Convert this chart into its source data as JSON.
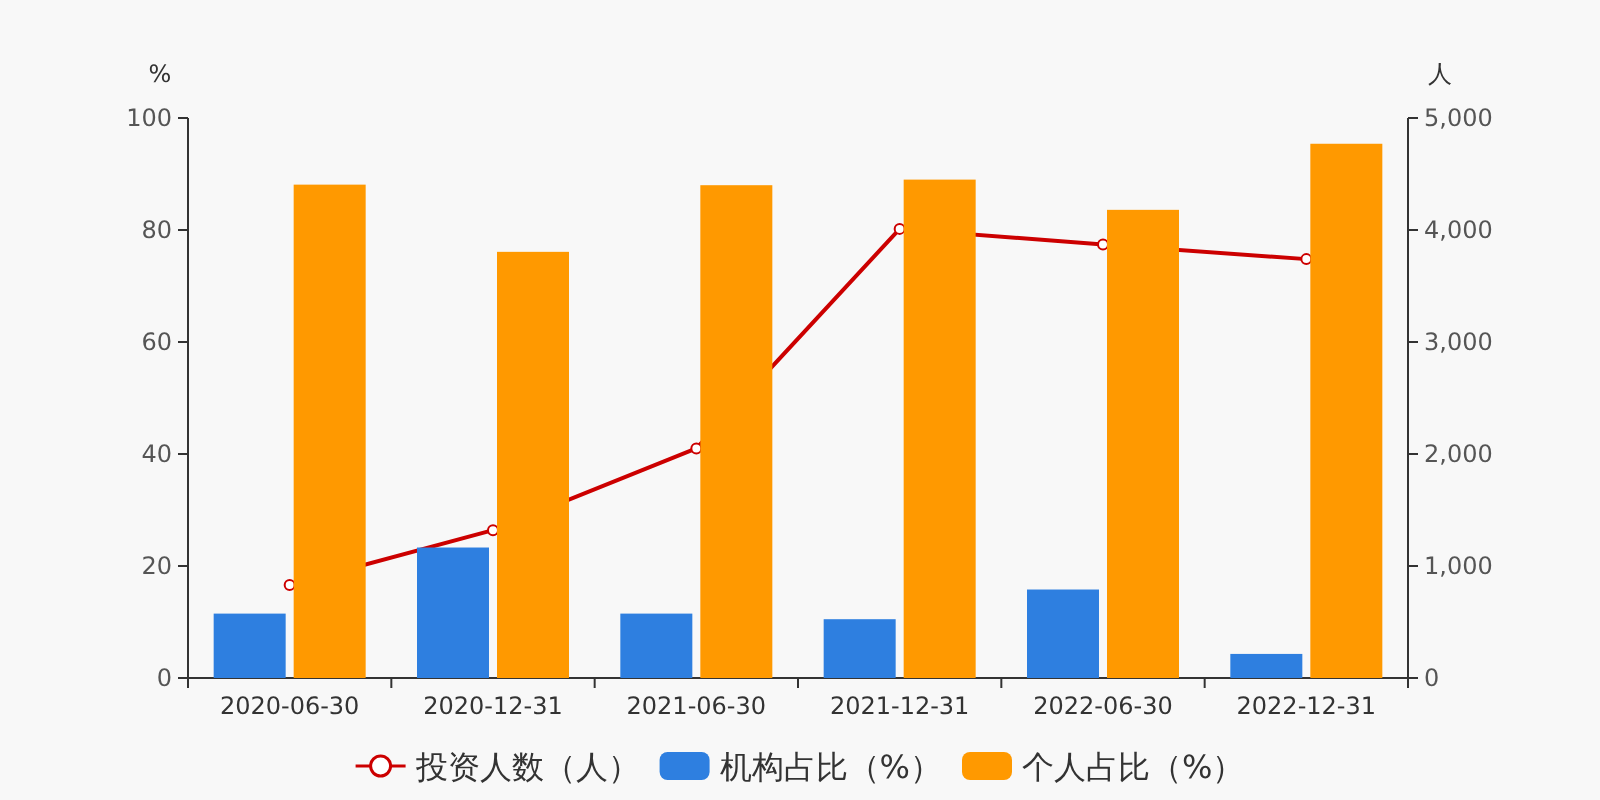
{
  "chart_data": {
    "type": "bar",
    "categories": [
      "2020-06-30",
      "2020-12-31",
      "2021-06-30",
      "2021-12-31",
      "2022-06-30",
      "2022-12-31"
    ],
    "series": [
      {
        "name": "投资人数（人）",
        "type": "line",
        "axis": "y2",
        "color": "#cc0000",
        "marker": "circle",
        "values": [
          830,
          1320,
          2050,
          4010,
          3870,
          3740
        ]
      },
      {
        "name": "机构占比（%）",
        "color": "#2e7fe0",
        "values": [
          11.5,
          23.3,
          11.5,
          10.5,
          15.8,
          4.3
        ]
      },
      {
        "name": "个人占比（%）",
        "color": "#ff9900",
        "values": [
          88.1,
          76.1,
          88.0,
          89.0,
          83.6,
          95.4
        ]
      }
    ],
    "ylabel": "%",
    "y2label": "人",
    "ylim": [
      0,
      100
    ],
    "yticks": [
      0,
      20,
      40,
      60,
      80,
      100
    ],
    "y2lim": [
      0,
      5000
    ],
    "y2ticks": [
      0,
      {
        "value": 1000,
        "label": "1,000"
      },
      {
        "value": 2000,
        "label": "2,000"
      },
      {
        "value": 3000,
        "label": "3,000"
      },
      {
        "value": 4000,
        "label": "4,000"
      },
      {
        "value": 5000,
        "label": "5,000"
      }
    ],
    "grid": false,
    "legend": "bottom"
  }
}
